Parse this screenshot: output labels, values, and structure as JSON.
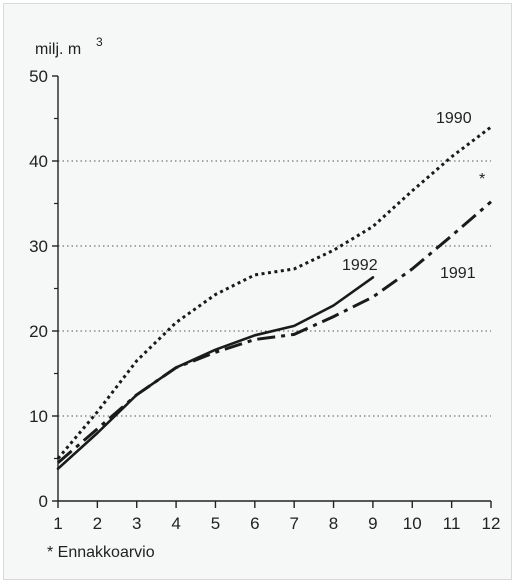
{
  "chart_data": {
    "type": "line",
    "ylabel_unit": "milj. m",
    "ylabel_exponent": "3",
    "x": [
      1,
      2,
      3,
      4,
      5,
      6,
      7,
      8,
      9,
      10,
      11,
      12
    ],
    "xlim": [
      1,
      12
    ],
    "ylim": [
      0,
      50
    ],
    "yticks": [
      0,
      10,
      20,
      30,
      40,
      50
    ],
    "grid": "horizontal dotted",
    "series": [
      {
        "name": "1990",
        "style": "dotted",
        "x": [
          1,
          2,
          3,
          4,
          5,
          6,
          7,
          8,
          9,
          10,
          11,
          12
        ],
        "values": [
          5,
          10.5,
          16.5,
          21,
          24.3,
          26.6,
          27.3,
          29.5,
          32.3,
          36.5,
          40.5,
          44
        ]
      },
      {
        "name": "1991",
        "style": "dash-dot",
        "x": [
          1,
          2,
          3,
          4,
          5,
          6,
          7,
          8,
          9,
          10,
          11,
          12
        ],
        "values": [
          4.5,
          8.5,
          12.5,
          15.7,
          17.5,
          19,
          19.6,
          21.7,
          24,
          27.3,
          31.2,
          35.2
        ]
      },
      {
        "name": "1992",
        "style": "solid",
        "x": [
          1,
          2,
          3,
          4,
          5,
          6,
          7,
          8,
          9
        ],
        "values": [
          3.8,
          8,
          12.5,
          15.7,
          17.8,
          19.5,
          20.6,
          23,
          26.3
        ]
      }
    ],
    "annotations": {
      "asterisk": "*",
      "footnote": "* Ennakkoarvio"
    }
  }
}
